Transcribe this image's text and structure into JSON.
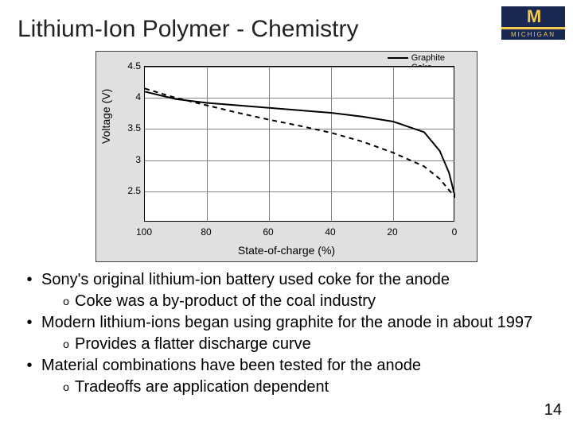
{
  "title": "Lithium-Ion Polymer - Chemistry",
  "logo": {
    "main": "M",
    "sub": "MICHIGAN"
  },
  "page_number": "14",
  "chart": {
    "type": "line",
    "background_color": "#e0e0e0",
    "plot_background": "#ffffff",
    "grid_color": "#808080",
    "axis_color": "#000000",
    "ylabel": "Voltage (V)",
    "xlabel": "State-of-charge (%)",
    "ylim": [
      2.0,
      4.5
    ],
    "xlim": [
      100,
      0
    ],
    "yticks": [
      2.5,
      3,
      3.5,
      4,
      4.5
    ],
    "xticks": [
      100,
      80,
      60,
      40,
      20,
      0
    ],
    "legend": [
      {
        "label": "Graphite",
        "style": "solid"
      },
      {
        "label": "Coke",
        "style": "dashed"
      }
    ],
    "series": {
      "graphite": {
        "color": "#000000",
        "width": 2,
        "dash": "none",
        "points": [
          [
            100,
            4.1
          ],
          [
            90,
            3.98
          ],
          [
            80,
            3.92
          ],
          [
            70,
            3.88
          ],
          [
            60,
            3.84
          ],
          [
            50,
            3.8
          ],
          [
            40,
            3.76
          ],
          [
            30,
            3.7
          ],
          [
            20,
            3.62
          ],
          [
            10,
            3.45
          ],
          [
            5,
            3.15
          ],
          [
            2,
            2.8
          ],
          [
            0,
            2.4
          ]
        ]
      },
      "coke": {
        "color": "#000000",
        "width": 2,
        "dash": "6,5",
        "points": [
          [
            100,
            4.15
          ],
          [
            90,
            4.0
          ],
          [
            80,
            3.88
          ],
          [
            70,
            3.76
          ],
          [
            60,
            3.65
          ],
          [
            50,
            3.55
          ],
          [
            40,
            3.44
          ],
          [
            30,
            3.3
          ],
          [
            20,
            3.12
          ],
          [
            10,
            2.9
          ],
          [
            5,
            2.7
          ],
          [
            0,
            2.4
          ]
        ]
      }
    }
  },
  "bullets": [
    {
      "text": "Sony's original lithium-ion battery used coke for the anode",
      "sub": [
        "Coke was a by-product of the coal industry"
      ]
    },
    {
      "text": "Modern lithium-ions began using graphite for the anode in about 1997",
      "sub": [
        "Provides a flatter discharge curve"
      ]
    },
    {
      "text": "Material combinations have been tested for the anode",
      "sub": [
        "Tradeoffs are application dependent"
      ]
    }
  ]
}
